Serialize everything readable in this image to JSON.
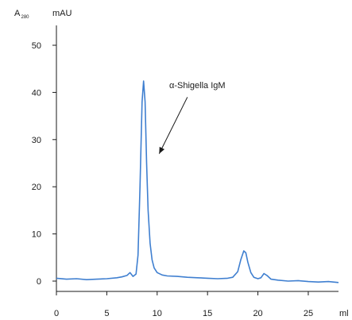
{
  "chart_data": {
    "type": "line",
    "title": "",
    "ylabel": "A",
    "ylabel_subscript": "280",
    "yunit": "mAU",
    "xunit": "ml",
    "xlim": [
      0,
      28
    ],
    "ylim": [
      -2,
      55
    ],
    "xticks": [
      0,
      5,
      10,
      15,
      20,
      25
    ],
    "yticks": [
      0,
      10,
      20,
      30,
      40,
      50
    ],
    "grid": false,
    "series": [
      {
        "color": "#3f7fd0",
        "x": [
          0,
          1,
          2,
          3,
          4,
          5,
          6,
          6.5,
          7,
          7.3,
          7.6,
          7.9,
          8.1,
          8.3,
          8.5,
          8.65,
          8.8,
          8.95,
          9.1,
          9.3,
          9.5,
          9.7,
          10,
          10.5,
          11,
          12,
          13,
          14,
          15,
          16,
          17,
          17.5,
          18,
          18.3,
          18.6,
          18.8,
          19,
          19.3,
          19.6,
          20,
          20.3,
          20.6,
          20.9,
          21.3,
          22,
          23,
          24,
          25,
          26,
          27,
          28
        ],
        "y": [
          0.6,
          0.4,
          0.5,
          0.3,
          0.4,
          0.5,
          0.7,
          0.9,
          1.2,
          1.8,
          1.0,
          1.5,
          5.5,
          20.0,
          38.0,
          42.4,
          38.0,
          25.0,
          15.0,
          8.0,
          4.5,
          2.8,
          1.8,
          1.3,
          1.1,
          1.0,
          0.8,
          0.7,
          0.6,
          0.5,
          0.6,
          0.8,
          2.0,
          4.5,
          6.4,
          6.0,
          4.0,
          1.8,
          0.8,
          0.5,
          0.7,
          1.6,
          1.2,
          0.4,
          0.2,
          0.0,
          0.1,
          -0.1,
          -0.2,
          -0.1,
          -0.3
        ]
      }
    ],
    "annotations": [
      {
        "text": "α-Shigella IgM",
        "arrow_to": [
          10.2,
          27.0
        ],
        "arrow_from": [
          13.0,
          39.0
        ]
      }
    ]
  }
}
